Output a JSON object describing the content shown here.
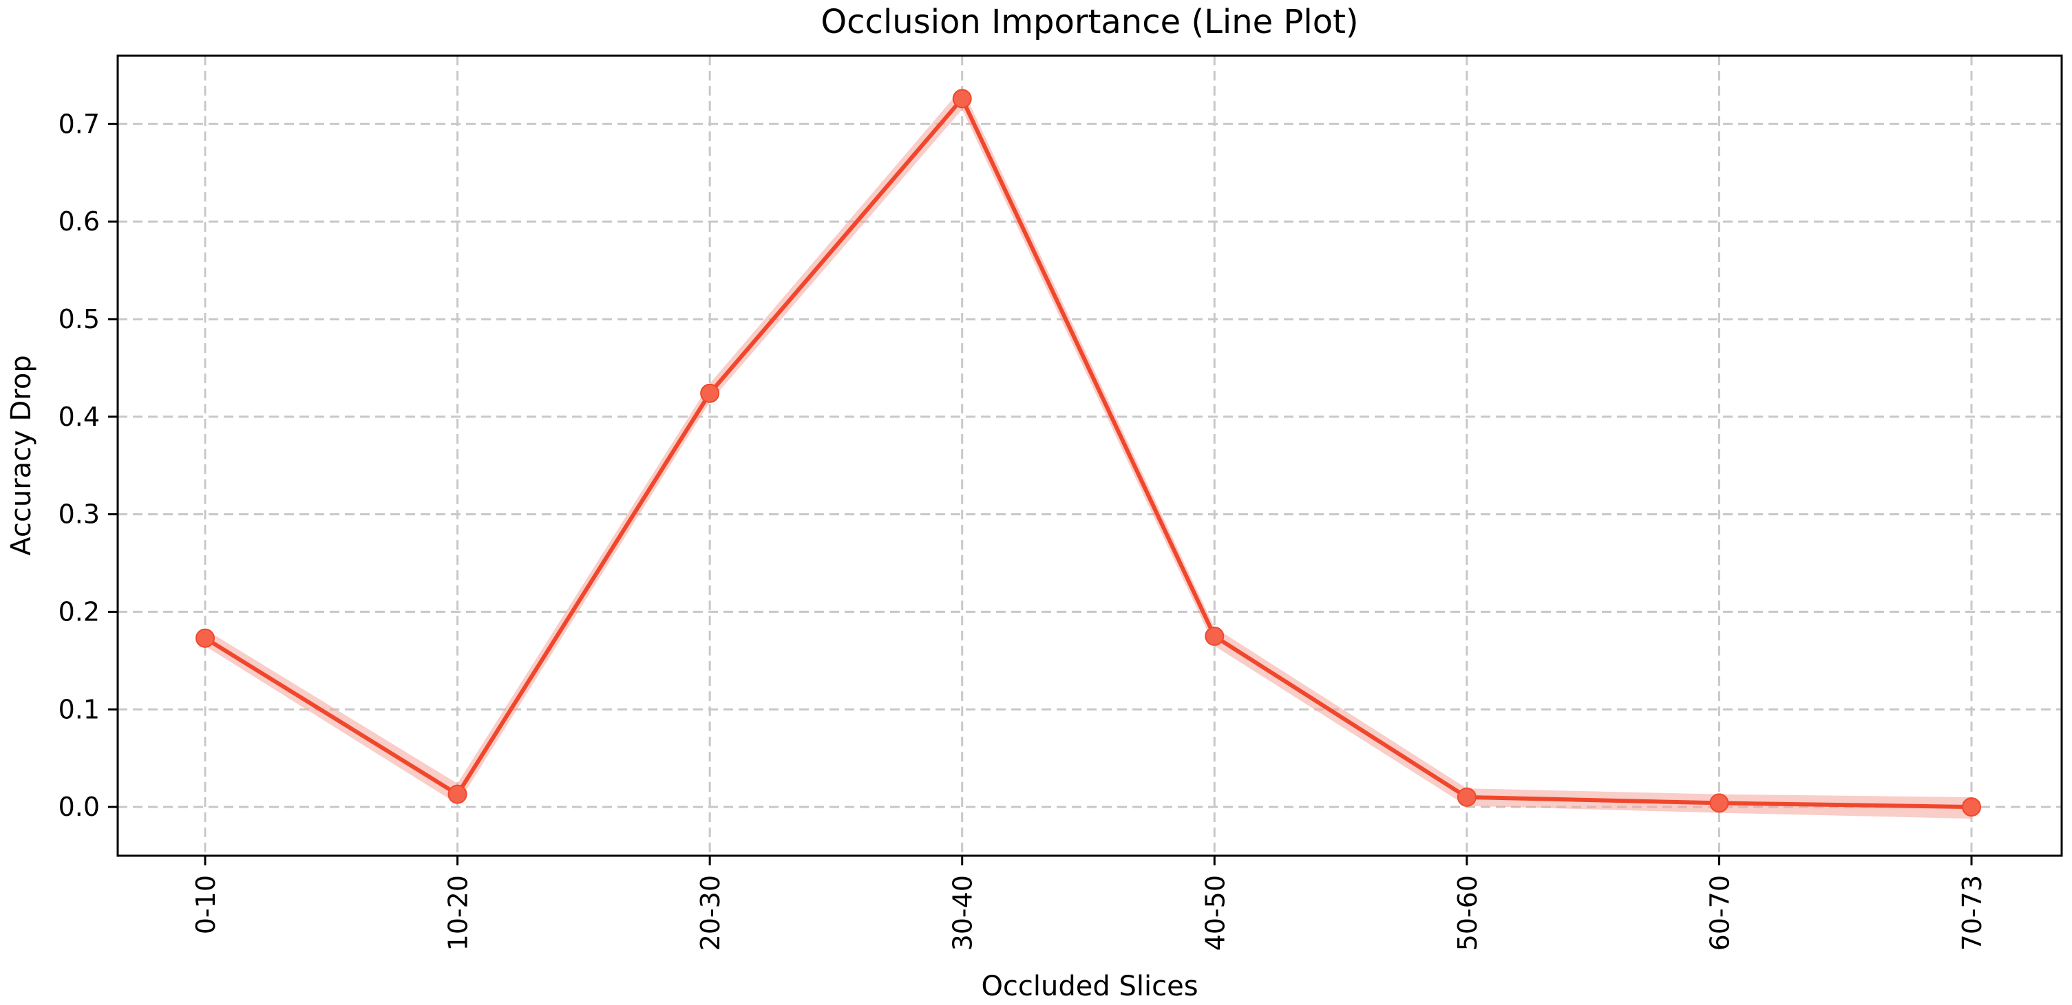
{
  "chart_data": {
    "type": "line",
    "title": "Occlusion Importance (Line Plot)",
    "xlabel": "Occluded Slices",
    "ylabel": "Accuracy Drop",
    "categories": [
      "0-10",
      "10-20",
      "20-30",
      "30-40",
      "40-50",
      "50-60",
      "60-70",
      "70-73"
    ],
    "series": [
      {
        "values": [
          0.173,
          0.013,
          0.424,
          0.726,
          0.175,
          0.01,
          0.004,
          0.0
        ],
        "lower": [
          0.165,
          0.003,
          0.415,
          0.715,
          0.165,
          0.001,
          -0.006,
          -0.012
        ],
        "upper": [
          0.182,
          0.024,
          0.434,
          0.737,
          0.184,
          0.019,
          0.013,
          0.01
        ]
      }
    ],
    "yticks": [
      "0.0",
      "0.1",
      "0.2",
      "0.3",
      "0.4",
      "0.5",
      "0.6",
      "0.7"
    ],
    "ylim": [
      -0.05,
      0.77
    ],
    "grid": true,
    "colors": {
      "line": "#f0472c",
      "marker": "#f5634a",
      "band": "#f4a49a",
      "grid": "#c8c8c8"
    }
  }
}
